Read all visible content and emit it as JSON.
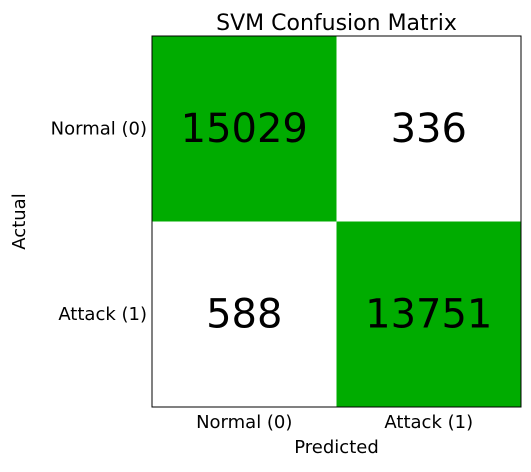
{
  "chart_data": {
    "type": "heatmap",
    "title": "SVM Confusion Matrix",
    "xlabel": "Predicted",
    "ylabel": "Actual",
    "x_categories": [
      "Normal (0)",
      "Attack (1)"
    ],
    "y_categories": [
      "Normal (0)",
      "Attack (1)"
    ],
    "values": [
      [
        15029,
        336
      ],
      [
        588,
        13751
      ]
    ],
    "cell_colors": [
      [
        "#00ac00",
        "#ffffff"
      ],
      [
        "#ffffff",
        "#00ac00"
      ]
    ],
    "grid": false,
    "legend": "none"
  }
}
